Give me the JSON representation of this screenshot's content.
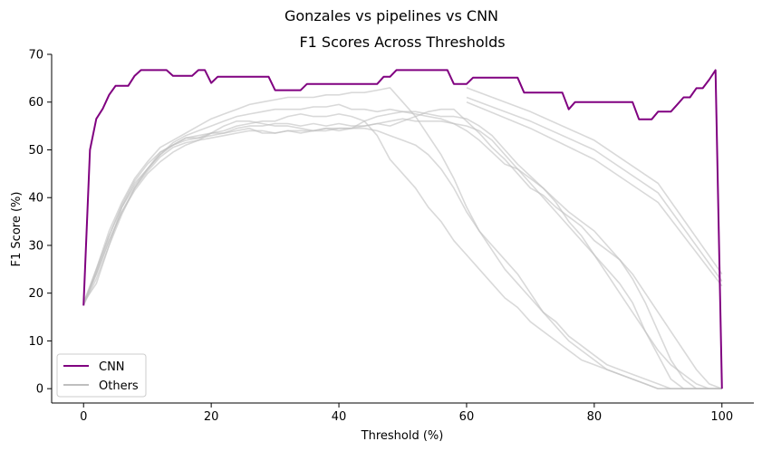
{
  "chart_data": {
    "type": "line",
    "suptitle": "Gonzales vs pipelines vs CNN",
    "title": "F1 Scores Across Thresholds",
    "xlabel": "Threshold (%)",
    "ylabel": "F1 Score (%)",
    "xlim": [
      -5,
      105
    ],
    "ylim": [
      -3,
      70
    ],
    "xticks": [
      0,
      20,
      40,
      60,
      80,
      100
    ],
    "yticks": [
      0,
      10,
      20,
      30,
      40,
      50,
      60,
      70
    ],
    "grid": false,
    "legend_position": "lower-left",
    "legend": [
      {
        "label": "CNN",
        "color": "#800080"
      },
      {
        "label": "Others",
        "color": "#bfbfbf"
      }
    ],
    "series": [
      {
        "name": "CNN",
        "color": "#800080",
        "x": [
          0,
          1,
          2,
          3,
          4,
          5,
          6,
          7,
          8,
          9,
          10,
          11,
          12,
          13,
          14,
          15,
          16,
          17,
          18,
          19,
          20,
          21,
          22,
          23,
          24,
          25,
          26,
          27,
          28,
          29,
          30,
          31,
          32,
          33,
          34,
          35,
          36,
          37,
          38,
          39,
          40,
          41,
          42,
          43,
          44,
          45,
          46,
          47,
          48,
          49,
          50,
          51,
          52,
          53,
          54,
          55,
          56,
          57,
          58,
          59,
          60,
          61,
          62,
          63,
          64,
          65,
          66,
          67,
          68,
          69,
          70,
          71,
          72,
          73,
          74,
          75,
          76,
          77,
          78,
          79,
          80,
          81,
          82,
          83,
          84,
          85,
          86,
          87,
          88,
          89,
          90,
          91,
          92,
          93,
          94,
          95,
          96,
          97,
          98,
          99,
          100
        ],
        "y": [
          17.4,
          50,
          56.5,
          58.6,
          61.5,
          63.4,
          63.4,
          63.4,
          65.5,
          66.7,
          66.7,
          66.7,
          66.7,
          66.7,
          65.5,
          65.5,
          65.5,
          65.5,
          66.7,
          66.7,
          64,
          65.3,
          65.3,
          65.3,
          65.3,
          65.3,
          65.3,
          65.3,
          65.3,
          65.3,
          62.5,
          62.5,
          62.5,
          62.5,
          62.5,
          63.8,
          63.8,
          63.8,
          63.8,
          63.8,
          63.8,
          63.8,
          63.8,
          63.8,
          63.8,
          63.8,
          63.8,
          65.3,
          65.3,
          66.7,
          66.7,
          66.7,
          66.7,
          66.7,
          66.7,
          66.7,
          66.7,
          66.7,
          63.8,
          63.8,
          63.8,
          65.1,
          65.1,
          65.1,
          65.1,
          65.1,
          65.1,
          65.1,
          65.1,
          62,
          62,
          62,
          62,
          62,
          62,
          62,
          58.5,
          60,
          60,
          60,
          60,
          60,
          60,
          60,
          60,
          60,
          60,
          56.4,
          56.4,
          56.4,
          58,
          58,
          58,
          59.5,
          61,
          61,
          62.9,
          62.9,
          64.7,
          66.7,
          0
        ]
      },
      {
        "name": "",
        "color": "#bfbfbf",
        "x": [
          0,
          2,
          4,
          6,
          8,
          10,
          12,
          14,
          16,
          18,
          20,
          22,
          24,
          26,
          28,
          30,
          32,
          34,
          36,
          38,
          40,
          42,
          44,
          46,
          48,
          50,
          52,
          54,
          56,
          58,
          60,
          62,
          64,
          66,
          68,
          70,
          72,
          74,
          76,
          78,
          80,
          82,
          84,
          86,
          88,
          90,
          92,
          94,
          96,
          98,
          100
        ],
        "y": [
          18,
          25,
          32,
          38,
          43,
          46,
          49.5,
          51,
          52,
          52.5,
          53,
          53.5,
          54.5,
          55,
          55,
          55.5,
          55.5,
          55,
          55.5,
          55,
          55.5,
          55,
          55,
          55.5,
          55,
          56,
          57,
          58,
          58.5,
          58.5,
          56,
          53.5,
          50.5,
          48,
          45,
          42,
          40.5,
          38,
          36,
          34,
          31,
          29,
          27,
          24,
          20,
          16,
          12,
          8,
          4,
          1,
          0
        ]
      },
      {
        "name": "",
        "color": "#bfbfbf",
        "x": [
          0,
          2,
          4,
          6,
          8,
          10,
          12,
          14,
          16,
          18,
          20,
          22,
          24,
          26,
          28,
          30,
          32,
          34,
          36,
          38,
          40,
          42,
          44,
          46,
          48,
          50,
          52,
          54,
          56,
          58,
          60,
          62,
          64,
          66,
          68,
          70,
          72,
          74,
          76,
          78,
          80,
          82,
          84,
          86,
          88,
          90,
          92,
          94,
          96,
          98,
          100
        ],
        "y": [
          17.5,
          24,
          31,
          37,
          42,
          45.5,
          48.5,
          50.5,
          51.5,
          52,
          53.5,
          55,
          56,
          56,
          55.5,
          55,
          55,
          54.5,
          54,
          54.5,
          54,
          54.5,
          55,
          55.5,
          56,
          56.5,
          56,
          56,
          56,
          55.5,
          55,
          54,
          52,
          49,
          46,
          43,
          40,
          37,
          34,
          31,
          28,
          25,
          22,
          18,
          12,
          7,
          2,
          0,
          0,
          0,
          0
        ]
      },
      {
        "name": "",
        "color": "#bfbfbf",
        "x": [
          0,
          2,
          4,
          6,
          8,
          10,
          12,
          14,
          16,
          18,
          20,
          22,
          24,
          26,
          28,
          30,
          32,
          34,
          36,
          38,
          40,
          42,
          44,
          46,
          48,
          50,
          52,
          54,
          56,
          58,
          60,
          62,
          64,
          66,
          68,
          70,
          72,
          74,
          76,
          78,
          80,
          82,
          84,
          86,
          88,
          90,
          92,
          94,
          96,
          98,
          100
        ],
        "y": [
          18,
          22,
          30,
          38,
          42.5,
          46,
          49,
          51,
          52.5,
          52.5,
          53.5,
          53.5,
          54,
          54.5,
          53.5,
          53.5,
          54,
          54,
          54,
          54.5,
          54.5,
          54.5,
          56,
          57,
          57.5,
          58,
          58,
          57.5,
          57,
          57,
          56.5,
          55,
          53,
          50,
          47,
          44.5,
          42,
          39.5,
          37,
          35,
          33,
          30,
          27,
          23,
          18,
          12,
          6,
          2,
          0,
          0,
          0
        ]
      },
      {
        "name": "",
        "color": "#bfbfbf",
        "x": [
          0,
          2,
          4,
          6,
          8,
          10,
          12,
          14,
          16,
          18,
          20,
          22,
          24,
          26,
          28,
          30,
          32,
          34,
          36,
          38,
          40,
          42,
          44,
          46,
          48,
          50,
          52,
          54,
          56,
          58,
          60,
          62,
          64,
          66,
          68,
          70,
          72,
          74,
          76,
          78,
          80,
          82,
          84,
          86,
          88,
          90,
          92,
          94,
          96,
          98,
          100
        ],
        "y": [
          17.5,
          23,
          30,
          36.5,
          42,
          46,
          49,
          51.5,
          53,
          54,
          55,
          56,
          57,
          57.5,
          58,
          58.5,
          58.5,
          58.5,
          59,
          59,
          59.5,
          58.5,
          58.5,
          58,
          58.5,
          58,
          57.5,
          57,
          56.5,
          55.5,
          54,
          52,
          49.5,
          47,
          46,
          44,
          42,
          39,
          35,
          32,
          28,
          24,
          20,
          16,
          12,
          8,
          5,
          3,
          1,
          0,
          0
        ]
      },
      {
        "name": "",
        "color": "#bfbfbf",
        "x": [
          0,
          2,
          4,
          6,
          8,
          10,
          12,
          14,
          16,
          18,
          20,
          22,
          24,
          26,
          28,
          30,
          32,
          34,
          36,
          38,
          40,
          42,
          44,
          46,
          48,
          50,
          52,
          54,
          56,
          58,
          60,
          62,
          64,
          66,
          68,
          70,
          72,
          74,
          76,
          78,
          80,
          82,
          84,
          86,
          88,
          90,
          92,
          94,
          96,
          98,
          100
        ],
        "y": [
          18,
          24,
          31,
          37,
          41.5,
          45,
          47.5,
          49.5,
          51,
          52,
          52.5,
          53,
          53.5,
          54,
          54,
          53.5,
          54,
          53.5,
          54,
          54,
          54.5,
          54.5,
          54.5,
          54,
          53,
          52,
          51,
          49,
          46,
          42,
          37,
          33,
          30,
          27,
          24,
          20,
          16,
          13,
          10,
          8,
          6,
          4,
          3,
          2,
          1,
          0,
          0,
          0,
          0,
          0,
          0
        ]
      },
      {
        "name": "",
        "color": "#bfbfbf",
        "x": [
          0,
          2,
          4,
          6,
          8,
          10,
          12,
          14,
          16,
          18,
          20,
          22,
          24,
          26,
          28,
          30,
          32,
          34,
          36,
          38,
          40,
          42,
          44,
          46,
          48,
          50,
          52,
          54,
          56,
          58,
          60,
          62,
          64,
          66,
          68,
          70,
          72,
          74,
          76,
          78,
          80,
          82,
          84,
          86,
          88,
          90,
          92,
          94,
          96,
          98,
          100
        ],
        "y": [
          17.5,
          25,
          33,
          39,
          44,
          47.5,
          50.5,
          52,
          53.5,
          55,
          56.5,
          57.5,
          58.5,
          59.5,
          60,
          60.5,
          61,
          61,
          61,
          61.5,
          61.5,
          62,
          62,
          62.5,
          63,
          60,
          57,
          53,
          49,
          44,
          38,
          33,
          29,
          25,
          22,
          19,
          16,
          14,
          11,
          9,
          7,
          5,
          4,
          3,
          2,
          1,
          0,
          0,
          0,
          0,
          0
        ]
      },
      {
        "name": "",
        "color": "#bfbfbf",
        "x": [
          0,
          2,
          4,
          6,
          8,
          10,
          12,
          14,
          16,
          18,
          20,
          22,
          24,
          26,
          28,
          30,
          32,
          34,
          36,
          38,
          40,
          42,
          44,
          46,
          48,
          50,
          52,
          54,
          56,
          58,
          60,
          62,
          64,
          66,
          68,
          70,
          72,
          74,
          76,
          78,
          80,
          82,
          84,
          86,
          88,
          90,
          92,
          94,
          96,
          98,
          100
        ],
        "y": [
          17.5,
          24.5,
          32,
          38.5,
          43.5,
          47,
          49.5,
          51,
          52.5,
          53,
          53.5,
          54,
          55,
          55.5,
          56,
          56,
          57,
          57.5,
          57,
          57,
          57.5,
          57,
          56,
          53,
          48,
          45,
          42,
          38,
          35,
          31,
          28,
          25,
          22,
          19,
          17,
          14,
          12,
          10,
          8,
          6,
          5,
          4,
          3,
          2,
          1,
          0,
          0,
          0,
          0,
          0,
          0
        ]
      },
      {
        "name": "",
        "color": "#bfbfbf",
        "x": [
          60,
          70,
          80,
          90,
          100
        ],
        "y": [
          63,
          58,
          52,
          43,
          24
        ]
      },
      {
        "name": "",
        "color": "#bfbfbf",
        "x": [
          60,
          70,
          80,
          90,
          100
        ],
        "y": [
          61,
          56,
          50,
          41,
          22.5
        ]
      },
      {
        "name": "",
        "color": "#bfbfbf",
        "x": [
          60,
          70,
          80,
          90,
          100
        ],
        "y": [
          60,
          54.5,
          48,
          39,
          21.5
        ]
      }
    ]
  }
}
